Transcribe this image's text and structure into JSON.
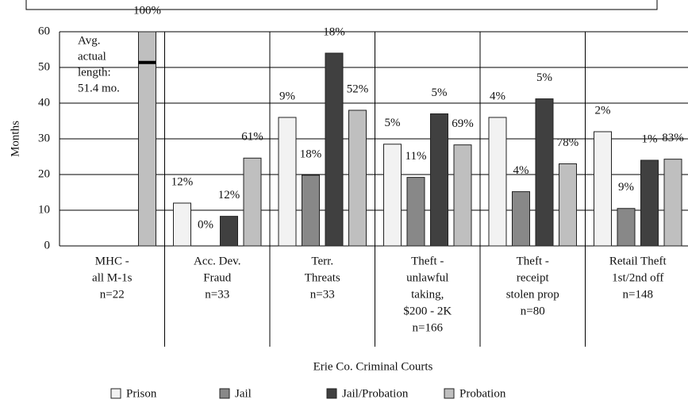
{
  "chart_data": {
    "type": "bar",
    "xlabel": "Erie Co. Criminal Courts",
    "ylabel": "Months",
    "categories": [
      [
        "MHC -",
        "all M-1s",
        "n=22"
      ],
      [
        "Acc. Dev.",
        "Fraud",
        "n=33"
      ],
      [
        "Terr.",
        "Threats",
        "n=33"
      ],
      [
        "Theft -",
        "unlawful",
        "taking,",
        "$200 - 2K",
        "n=166"
      ],
      [
        "Theft -",
        "receipt",
        "stolen prop",
        "n=80"
      ],
      [
        "Retail Theft",
        "1st/2nd off",
        "n=148"
      ]
    ],
    "series": [
      {
        "name": "Prison",
        "color": "#f2f2f2",
        "values": [
          null,
          12,
          36,
          28.5,
          36,
          32
        ],
        "share_labels": [
          null,
          "12%",
          "9%",
          "5%",
          "4%",
          "2%"
        ]
      },
      {
        "name": "Jail",
        "color": "#888888",
        "values": [
          null,
          0,
          19.8,
          19.2,
          15.2,
          10.5
        ],
        "share_labels": [
          null,
          "0%",
          "18%",
          "11%",
          "4%",
          "9%"
        ]
      },
      {
        "name": "Jail/Probation",
        "color": "#404040",
        "values": [
          null,
          8.3,
          54,
          37,
          41.2,
          24
        ],
        "share_labels": [
          null,
          "12%",
          "18%",
          "5%",
          "5%",
          "1%"
        ]
      },
      {
        "name": "Probation",
        "color": "#bfbfbf",
        "values": [
          60,
          24.6,
          38,
          28.3,
          23,
          24.3
        ],
        "share_labels": [
          "100%",
          "61%",
          "52%",
          "69%",
          "78%",
          "83%"
        ]
      }
    ],
    "annotation": {
      "lines": [
        "Avg.",
        "actual",
        "length:",
        "51.4 mo."
      ],
      "value": 51.4
    },
    "ylim": [
      0,
      60
    ],
    "yticks": [
      0,
      10,
      20,
      30,
      40,
      50,
      60
    ],
    "grid": true
  }
}
